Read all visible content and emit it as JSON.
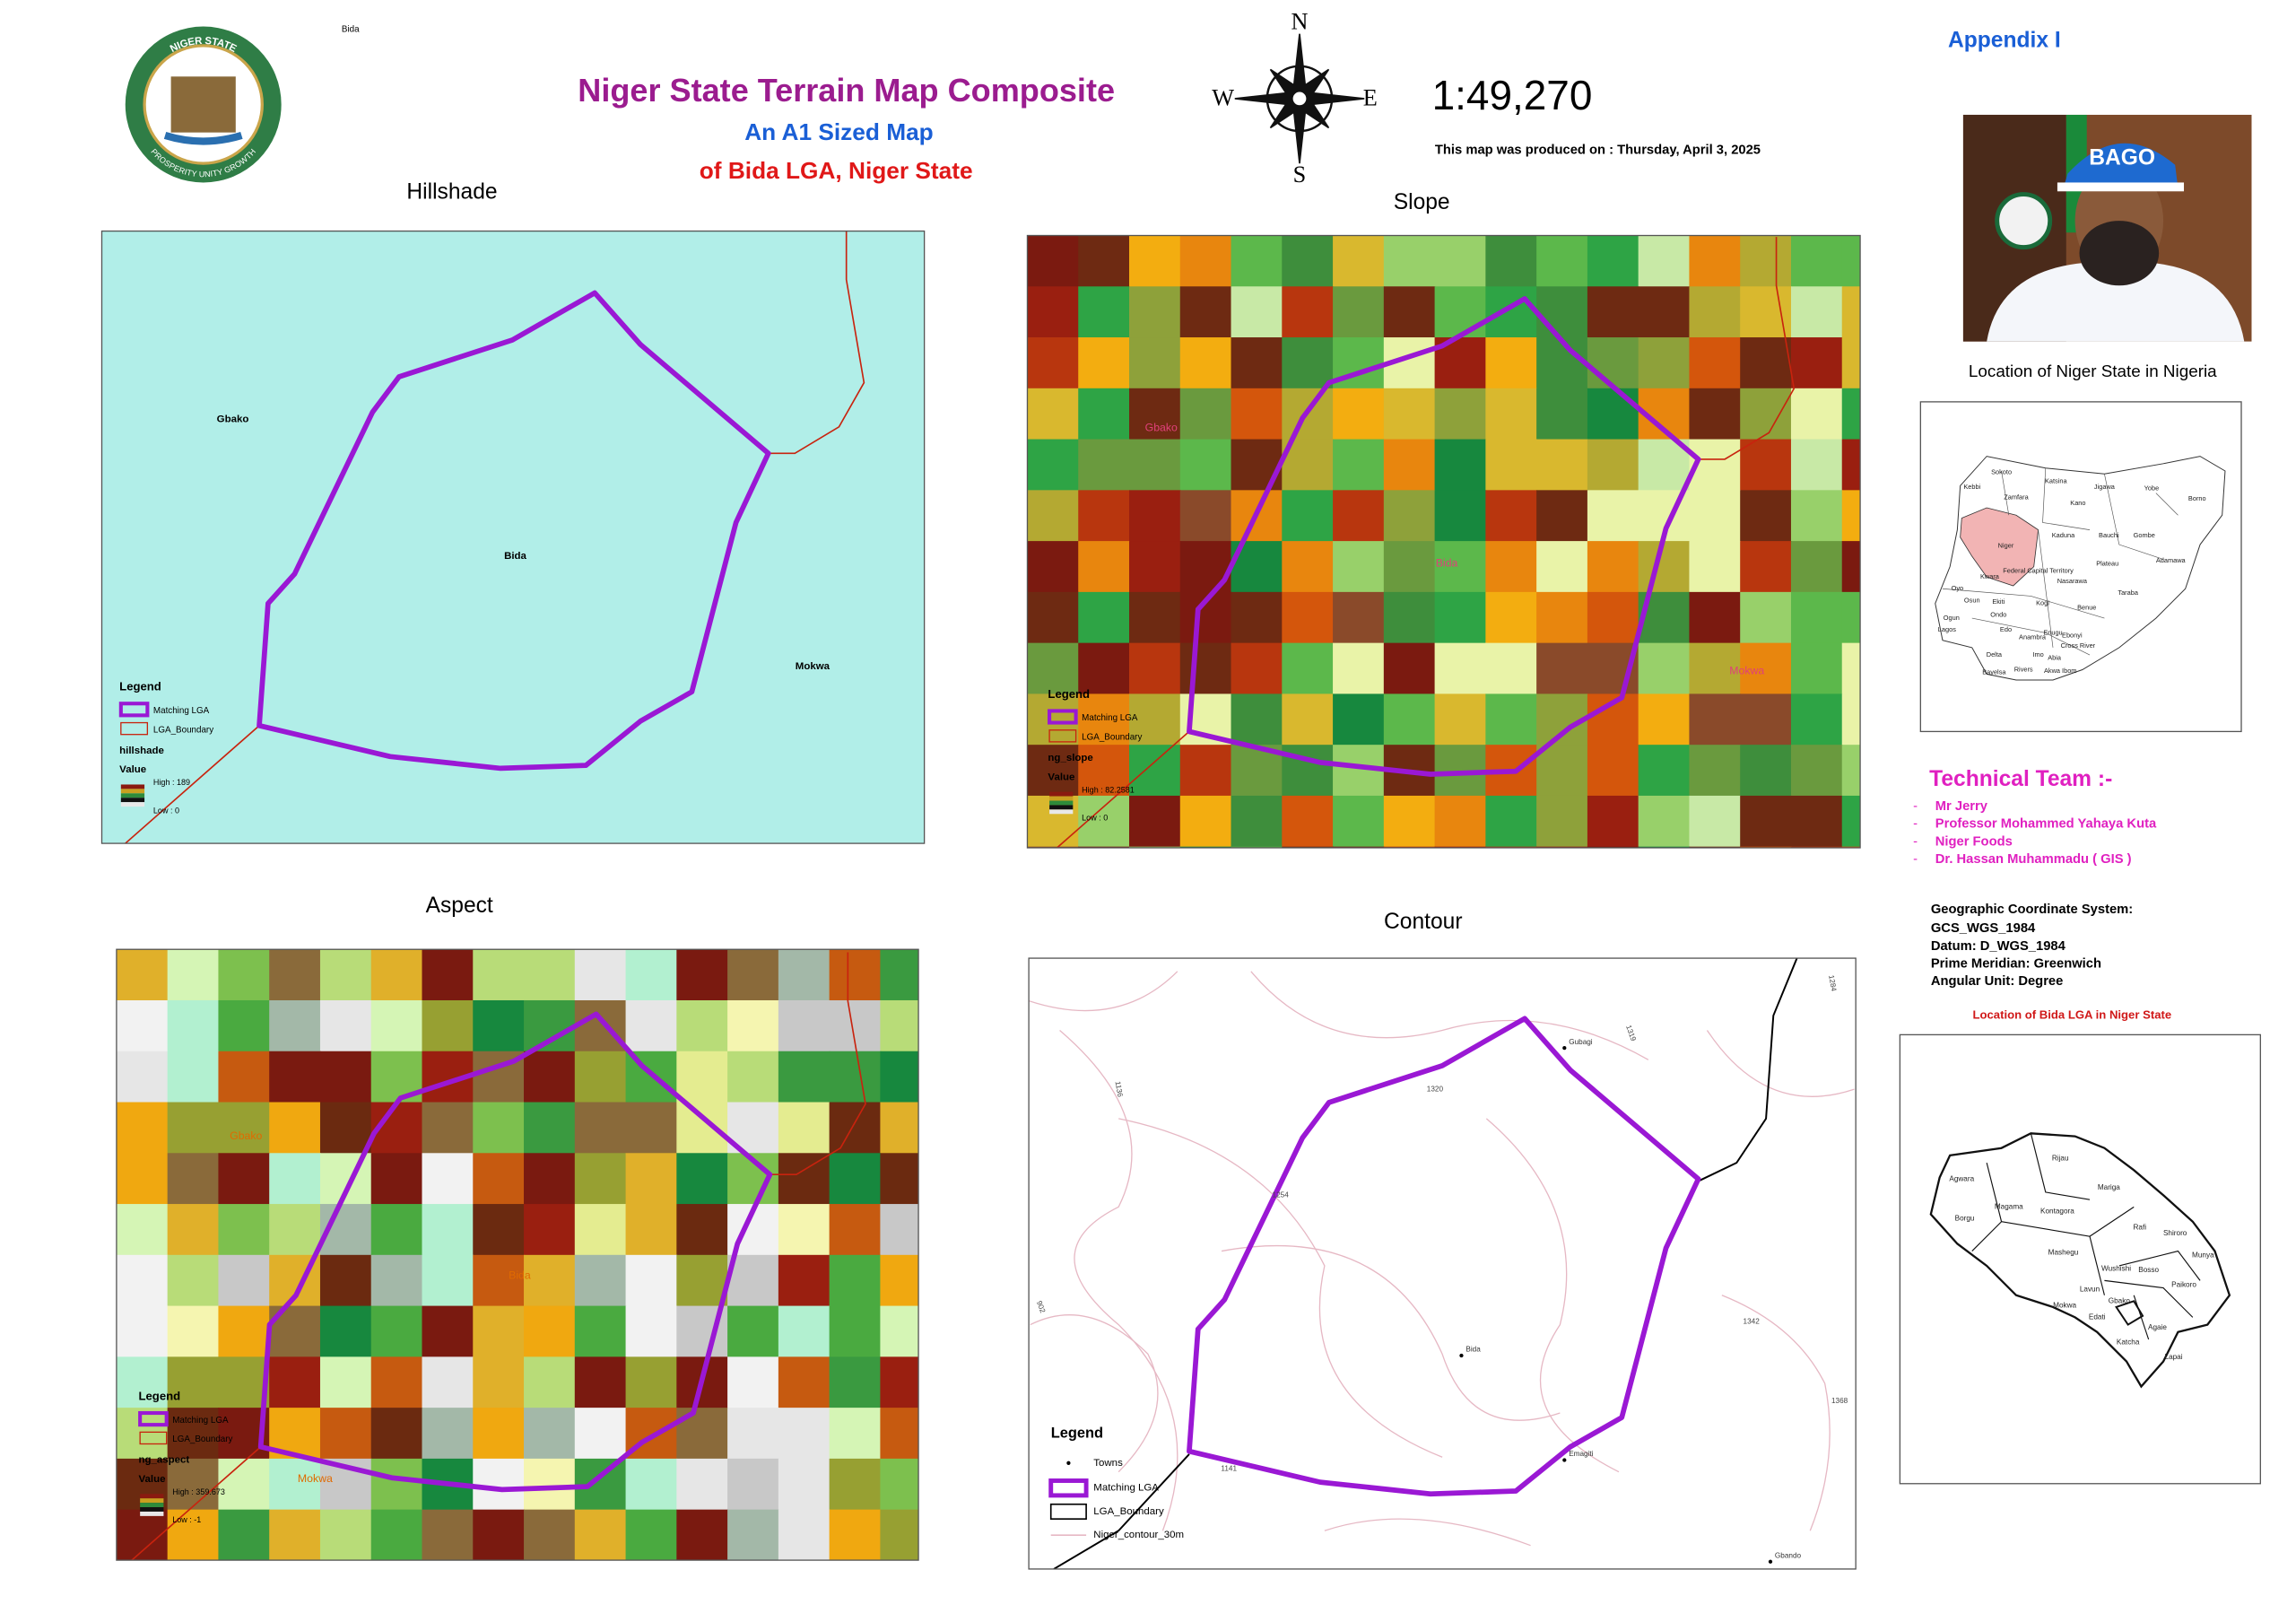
{
  "header": {
    "tag": "Bida",
    "title": "Niger State Terrain Map Composite",
    "subtitle": "An A1 Sized Map",
    "subtitle2": "of Bida LGA, Niger State",
    "scale": "1:49,270",
    "produced": "This map was produced on : Thursday, April 3, 2025",
    "appendix": "Appendix I"
  },
  "seal": {
    "top": "NIGER STATE",
    "bottom": "PROSPERITY UNITY GROWTH"
  },
  "compass": {
    "n": "N",
    "s": "S",
    "e": "E",
    "w": "W"
  },
  "photo": {
    "cap": "BAGO"
  },
  "panels": [
    {
      "title": "Hillshade",
      "labels": [
        "Gbako",
        "Bida",
        "Mokwa"
      ],
      "legend": {
        "title": "Legend",
        "items": [
          "Matching LGA",
          "LGA_Boundary"
        ],
        "layer": "hillshade",
        "value": "Value",
        "high": "High : 189",
        "low": "Low : 0"
      }
    },
    {
      "title": "Slope",
      "labels": [
        "Gbako",
        "Bida",
        "Mokwa"
      ],
      "legend": {
        "title": "Legend",
        "items": [
          "Matching LGA",
          "LGA_Boundary"
        ],
        "layer": "ng_slope",
        "value": "Value",
        "high": "High : 82.2581",
        "low": "Low : 0"
      }
    },
    {
      "title": "Aspect",
      "labels": [
        "Gbako",
        "Bida",
        "Mokwa"
      ],
      "legend": {
        "title": "Legend",
        "items": [
          "Matching LGA",
          "LGA_Boundary"
        ],
        "layer": "ng_aspect",
        "value": "Value",
        "high": "High : 359.673",
        "low": "Low : -1"
      }
    },
    {
      "title": "Contour",
      "labels": [
        "Gubagi",
        "Bida",
        "Emagiti",
        "Gbando"
      ],
      "contours": [
        "1320",
        "1254",
        "1141",
        "1342",
        "1368",
        "1319",
        "1284",
        "1136",
        "902"
      ],
      "legend": {
        "title": "Legend",
        "items": [
          "Towns",
          "Matching LGA",
          "LGA_Boundary",
          "Niger_contour_30m"
        ]
      }
    }
  ],
  "sidebar": {
    "nigeria_title": "Location of Niger State in Nigeria",
    "nigeria_states": [
      "Sokoto",
      "Katsina",
      "Jigawa",
      "Yobe",
      "Borno",
      "Kebbi",
      "Zamfara",
      "Kano",
      "Kaduna",
      "Bauchi",
      "Gombe",
      "Niger",
      "Federal Capital Territory",
      "Nasarawa",
      "Plateau",
      "Adamawa",
      "Kwara",
      "Oyo",
      "Osun",
      "Ekiti",
      "Kogi",
      "Benue",
      "Taraba",
      "Ogun",
      "Ondo",
      "Edo",
      "Lagos",
      "Enugu",
      "Ebonyi",
      "Cross River",
      "Anambra",
      "Delta",
      "Imo",
      "Abia",
      "Rivers",
      "Bayelsa",
      "Akwa Ibom"
    ],
    "team_title": "Technical Team :-",
    "team_bullet": "-",
    "team": [
      "Mr Jerry",
      "Professor Mohammed Yahaya Kuta",
      "Niger Foods",
      "Dr. Hassan Muhammadu ( GIS )"
    ],
    "coords": [
      "Geographic Coordinate System:",
      "GCS_WGS_1984",
      "Datum:    D_WGS_1984",
      "Prime Meridian:    Greenwich",
      "Angular Unit:    Degree"
    ],
    "niger_title": "Location of Bida LGA in Niger State",
    "niger_lgas": [
      "Rijau",
      "Agwara",
      "Mariga",
      "Magama",
      "Kontagora",
      "Borgu",
      "Rafi",
      "Shiroro",
      "Mashegu",
      "Wushishi",
      "Bosso",
      "Munya",
      "Lavun",
      "Paikoro",
      "Mokwa",
      "Gbako",
      "Edati",
      "Agaie",
      "Katcha",
      "Lapai"
    ]
  }
}
